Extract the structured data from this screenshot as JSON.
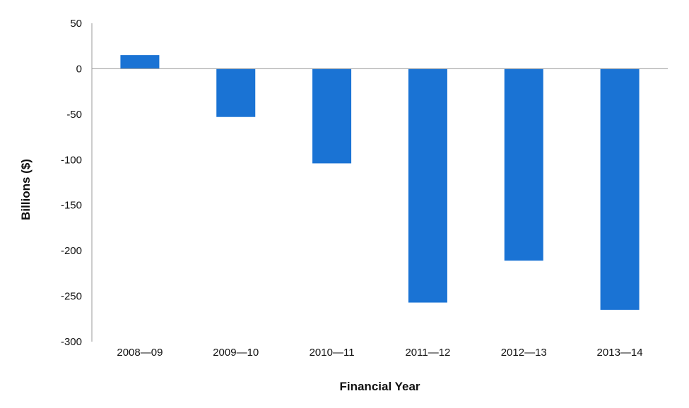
{
  "chart_data": {
    "type": "bar",
    "categories": [
      "2008—09",
      "2009—10",
      "2010—11",
      "2011—12",
      "2012—13",
      "2013—14"
    ],
    "values": [
      15,
      -53,
      -104,
      -257,
      -211,
      -265
    ],
    "xlabel": "Financial Year",
    "ylabel": "Billions ($)",
    "ylim": [
      -300,
      50
    ],
    "yticks": [
      50,
      0,
      -50,
      -100,
      -150,
      -200,
      -250,
      -300
    ],
    "grid": false,
    "legend": "none",
    "bar_color": "#1a73d4",
    "axis_color": "#9a9a9a"
  }
}
